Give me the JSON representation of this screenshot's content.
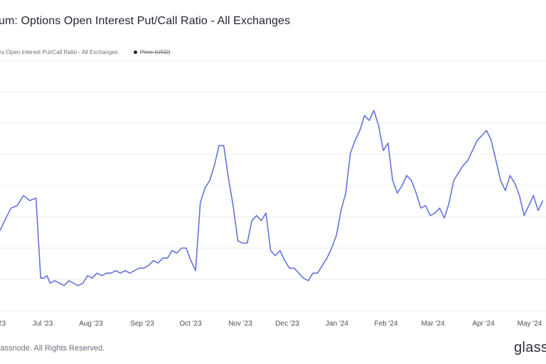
{
  "title": "um: Options Open Interest Put/Call Ratio - All Exchanges",
  "legend": {
    "series_label": "ns Open Interest Put/Call Ratio - All Exchanges",
    "price_label": "Price (USD)"
  },
  "footer": "lassnode. All Rights Reserved.",
  "brand": "glass",
  "colors": {
    "line": "#6374d8",
    "grid": "#ececf0",
    "text": "#1f2330"
  },
  "chart_data": {
    "type": "line",
    "x_tick_labels": [
      "23",
      "Jul '23",
      "Aug '23",
      "Sep '23",
      "Oct '23",
      "Nov '23",
      "Dec '23",
      "Jan '24",
      "Feb '24",
      "Mar '24",
      "Apr '24",
      "May '24"
    ],
    "grid": true,
    "series": [
      {
        "name": "ns Open Interest Put/Call Ratio - All Exchanges",
        "x": [
          "2023-06-01",
          "2023-06-04",
          "2023-06-08",
          "2023-06-12",
          "2023-06-16",
          "2023-06-20",
          "2023-06-24",
          "2023-06-27",
          "2023-06-29",
          "2023-07-01",
          "2023-07-03",
          "2023-07-06",
          "2023-07-09",
          "2023-07-12",
          "2023-07-15",
          "2023-07-18",
          "2023-07-21",
          "2023-07-24",
          "2023-07-27",
          "2023-07-30",
          "2023-08-02",
          "2023-08-05",
          "2023-08-08",
          "2023-08-11",
          "2023-08-14",
          "2023-08-17",
          "2023-08-20",
          "2023-08-23",
          "2023-08-26",
          "2023-08-29",
          "2023-09-01",
          "2023-09-04",
          "2023-09-07",
          "2023-09-10",
          "2023-09-13",
          "2023-09-16",
          "2023-09-19",
          "2023-09-22",
          "2023-09-25",
          "2023-09-28",
          "2023-10-01",
          "2023-10-04",
          "2023-10-07",
          "2023-10-10",
          "2023-10-13",
          "2023-10-16",
          "2023-10-19",
          "2023-10-22",
          "2023-10-25",
          "2023-10-28",
          "2023-10-31",
          "2023-11-03",
          "2023-11-06",
          "2023-11-09",
          "2023-11-12",
          "2023-11-15",
          "2023-11-18",
          "2023-11-21",
          "2023-11-24",
          "2023-11-27",
          "2023-11-30",
          "2023-12-03",
          "2023-12-06",
          "2023-12-09",
          "2023-12-12",
          "2023-12-15",
          "2023-12-18",
          "2023-12-21",
          "2023-12-24",
          "2023-12-27",
          "2023-12-30",
          "2024-01-02",
          "2024-01-05",
          "2024-01-08",
          "2024-01-11",
          "2024-01-14",
          "2024-01-17",
          "2024-01-20",
          "2024-01-23",
          "2024-01-26",
          "2024-01-29",
          "2024-02-01",
          "2024-02-04",
          "2024-02-07",
          "2024-02-10",
          "2024-02-13",
          "2024-02-16",
          "2024-02-19",
          "2024-02-22",
          "2024-02-25",
          "2024-02-28",
          "2024-03-02",
          "2024-03-05",
          "2024-03-08",
          "2024-03-11",
          "2024-03-14",
          "2024-03-17",
          "2024-03-20",
          "2024-03-23",
          "2024-03-26",
          "2024-03-29",
          "2024-04-01",
          "2024-04-04",
          "2024-04-07",
          "2024-04-10",
          "2024-04-13",
          "2024-04-16",
          "2024-04-19",
          "2024-04-22",
          "2024-04-25",
          "2024-04-28",
          "2024-05-01",
          "2024-05-04",
          "2024-05-07",
          "2024-05-10",
          "2024-05-13"
        ],
        "values": [
          0.52,
          0.56,
          0.61,
          0.62,
          0.66,
          0.64,
          0.65,
          0.33,
          0.33,
          0.34,
          0.31,
          0.32,
          0.31,
          0.3,
          0.32,
          0.31,
          0.3,
          0.31,
          0.34,
          0.33,
          0.35,
          0.34,
          0.35,
          0.35,
          0.36,
          0.35,
          0.36,
          0.35,
          0.36,
          0.37,
          0.37,
          0.38,
          0.4,
          0.39,
          0.41,
          0.41,
          0.44,
          0.43,
          0.45,
          0.45,
          0.4,
          0.36,
          0.63,
          0.69,
          0.72,
          0.78,
          0.86,
          0.86,
          0.73,
          0.62,
          0.48,
          0.47,
          0.47,
          0.56,
          0.58,
          0.56,
          0.59,
          0.44,
          0.42,
          0.44,
          0.4,
          0.37,
          0.37,
          0.35,
          0.33,
          0.32,
          0.35,
          0.35,
          0.38,
          0.41,
          0.45,
          0.5,
          0.6,
          0.67,
          0.83,
          0.88,
          0.92,
          0.98,
          0.96,
          1.0,
          0.94,
          0.84,
          0.87,
          0.72,
          0.67,
          0.7,
          0.74,
          0.72,
          0.67,
          0.61,
          0.62,
          0.58,
          0.59,
          0.61,
          0.57,
          0.63,
          0.72,
          0.75,
          0.78,
          0.8,
          0.84,
          0.88,
          0.9,
          0.92,
          0.88,
          0.8,
          0.72,
          0.68,
          0.74,
          0.71,
          0.66,
          0.58,
          0.62,
          0.66,
          0.6,
          0.64
        ]
      }
    ]
  }
}
